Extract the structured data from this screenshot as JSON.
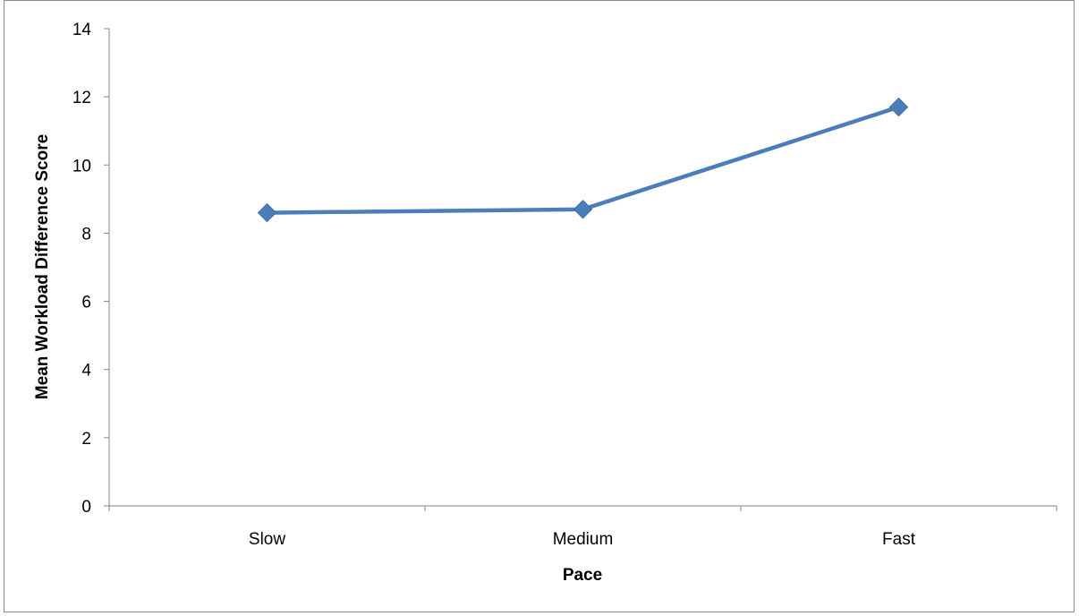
{
  "chart_data": {
    "type": "line",
    "categories": [
      "Slow",
      "Medium",
      "Fast"
    ],
    "series": [
      {
        "values": [
          8.6,
          8.7,
          11.7
        ]
      }
    ],
    "xlabel": "Pace",
    "ylabel": "Mean Workload Difference Score",
    "ylim": [
      0,
      14
    ],
    "yticks": [
      0,
      2,
      4,
      6,
      8,
      10,
      12,
      14
    ],
    "grid": false,
    "legend": "none",
    "marker": "diamond",
    "line_color": "#4a7ebb",
    "axis_color": "#868686"
  }
}
